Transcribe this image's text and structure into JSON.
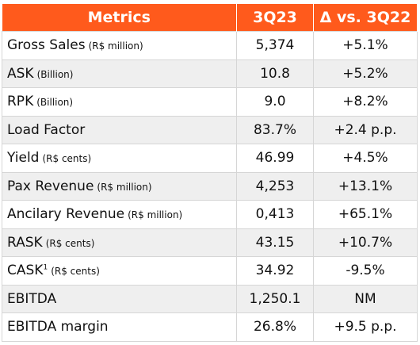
{
  "table": {
    "header": [
      "Metrics",
      "3Q23",
      "Δ vs. 3Q22"
    ],
    "rows": [
      {
        "label": "Gross Sales",
        "unit": "(R$ million)",
        "value": "5,374",
        "change": "+5.1%"
      },
      {
        "label": "ASK",
        "unit": "(Billion)",
        "value": "10.8",
        "change": "+5.2%"
      },
      {
        "label": "RPK",
        "unit": "(Billion)",
        "value": "9.0",
        "change": "+8.2%"
      },
      {
        "label": "Load Factor",
        "value": "83.7%",
        "change": "+2.4 p.p."
      },
      {
        "label": "Yield",
        "unit": "(R$ cents)",
        "value": "46.99",
        "change": "+4.5%"
      },
      {
        "label": "Pax Revenue",
        "unit": "(R$ million)",
        "value": "4,253",
        "change": "+13.1%"
      },
      {
        "label": "Ancilary Revenue",
        "unit": "(R$ million)",
        "value": "0,413",
        "change": "+65.1%"
      },
      {
        "label": "RASK",
        "unit": "(R$ cents)",
        "value": "43.15",
        "change": "+10.7%"
      },
      {
        "label": "CASK",
        "note": "1",
        "unit": "(R$ cents)",
        "value": "34.92",
        "change": "-9.5%"
      },
      {
        "label": "EBITDA",
        "value": "1,250.1",
        "change": "NM"
      },
      {
        "label": "EBITDA margin",
        "value": "26.8%",
        "change": "+9.5 p.p."
      }
    ]
  }
}
